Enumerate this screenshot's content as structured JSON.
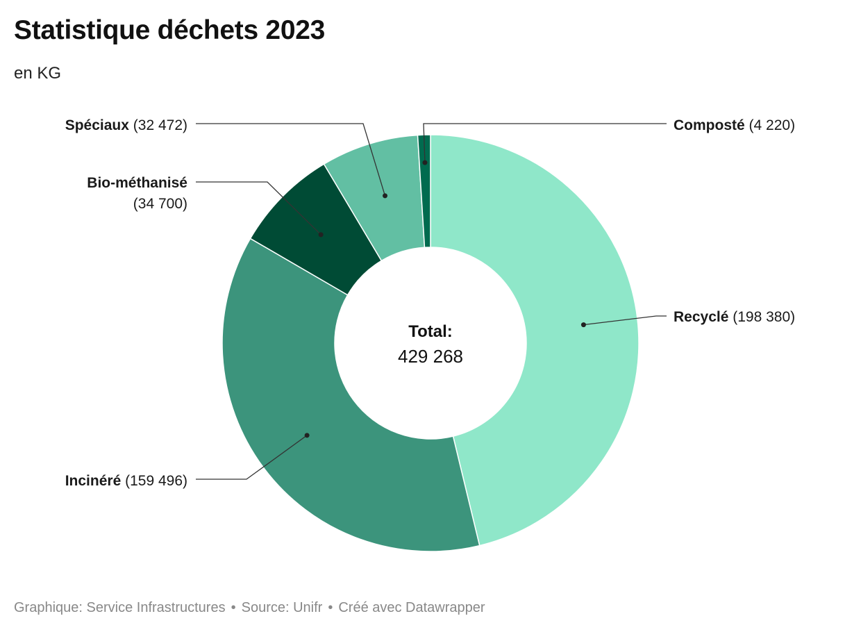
{
  "chart_data": {
    "type": "pie",
    "title": "Statistique déchets 2023",
    "subtitle": "en KG",
    "center_label": "Total:",
    "center_value": "429 268",
    "slices": [
      {
        "name": "Recyclé",
        "value": 198380,
        "value_label": "198 380",
        "color": "#8fe7c9"
      },
      {
        "name": "Incinéré",
        "value": 159496,
        "value_label": "159 496",
        "color": "#3c947c"
      },
      {
        "name": "Bio-méthanisé",
        "value": 34700,
        "value_label": "34 700",
        "color": "#004b35"
      },
      {
        "name": "Spéciaux",
        "value": 32472,
        "value_label": "32 472",
        "color": "#62bfa3"
      },
      {
        "name": "Composté",
        "value": 4220,
        "value_label": "4 220",
        "color": "#006b4f"
      }
    ]
  },
  "footer": {
    "graphic": "Graphique: Service Infrastructures",
    "separator": "•",
    "source": "Source: Unifr",
    "created": "Créé avec Datawrapper"
  }
}
